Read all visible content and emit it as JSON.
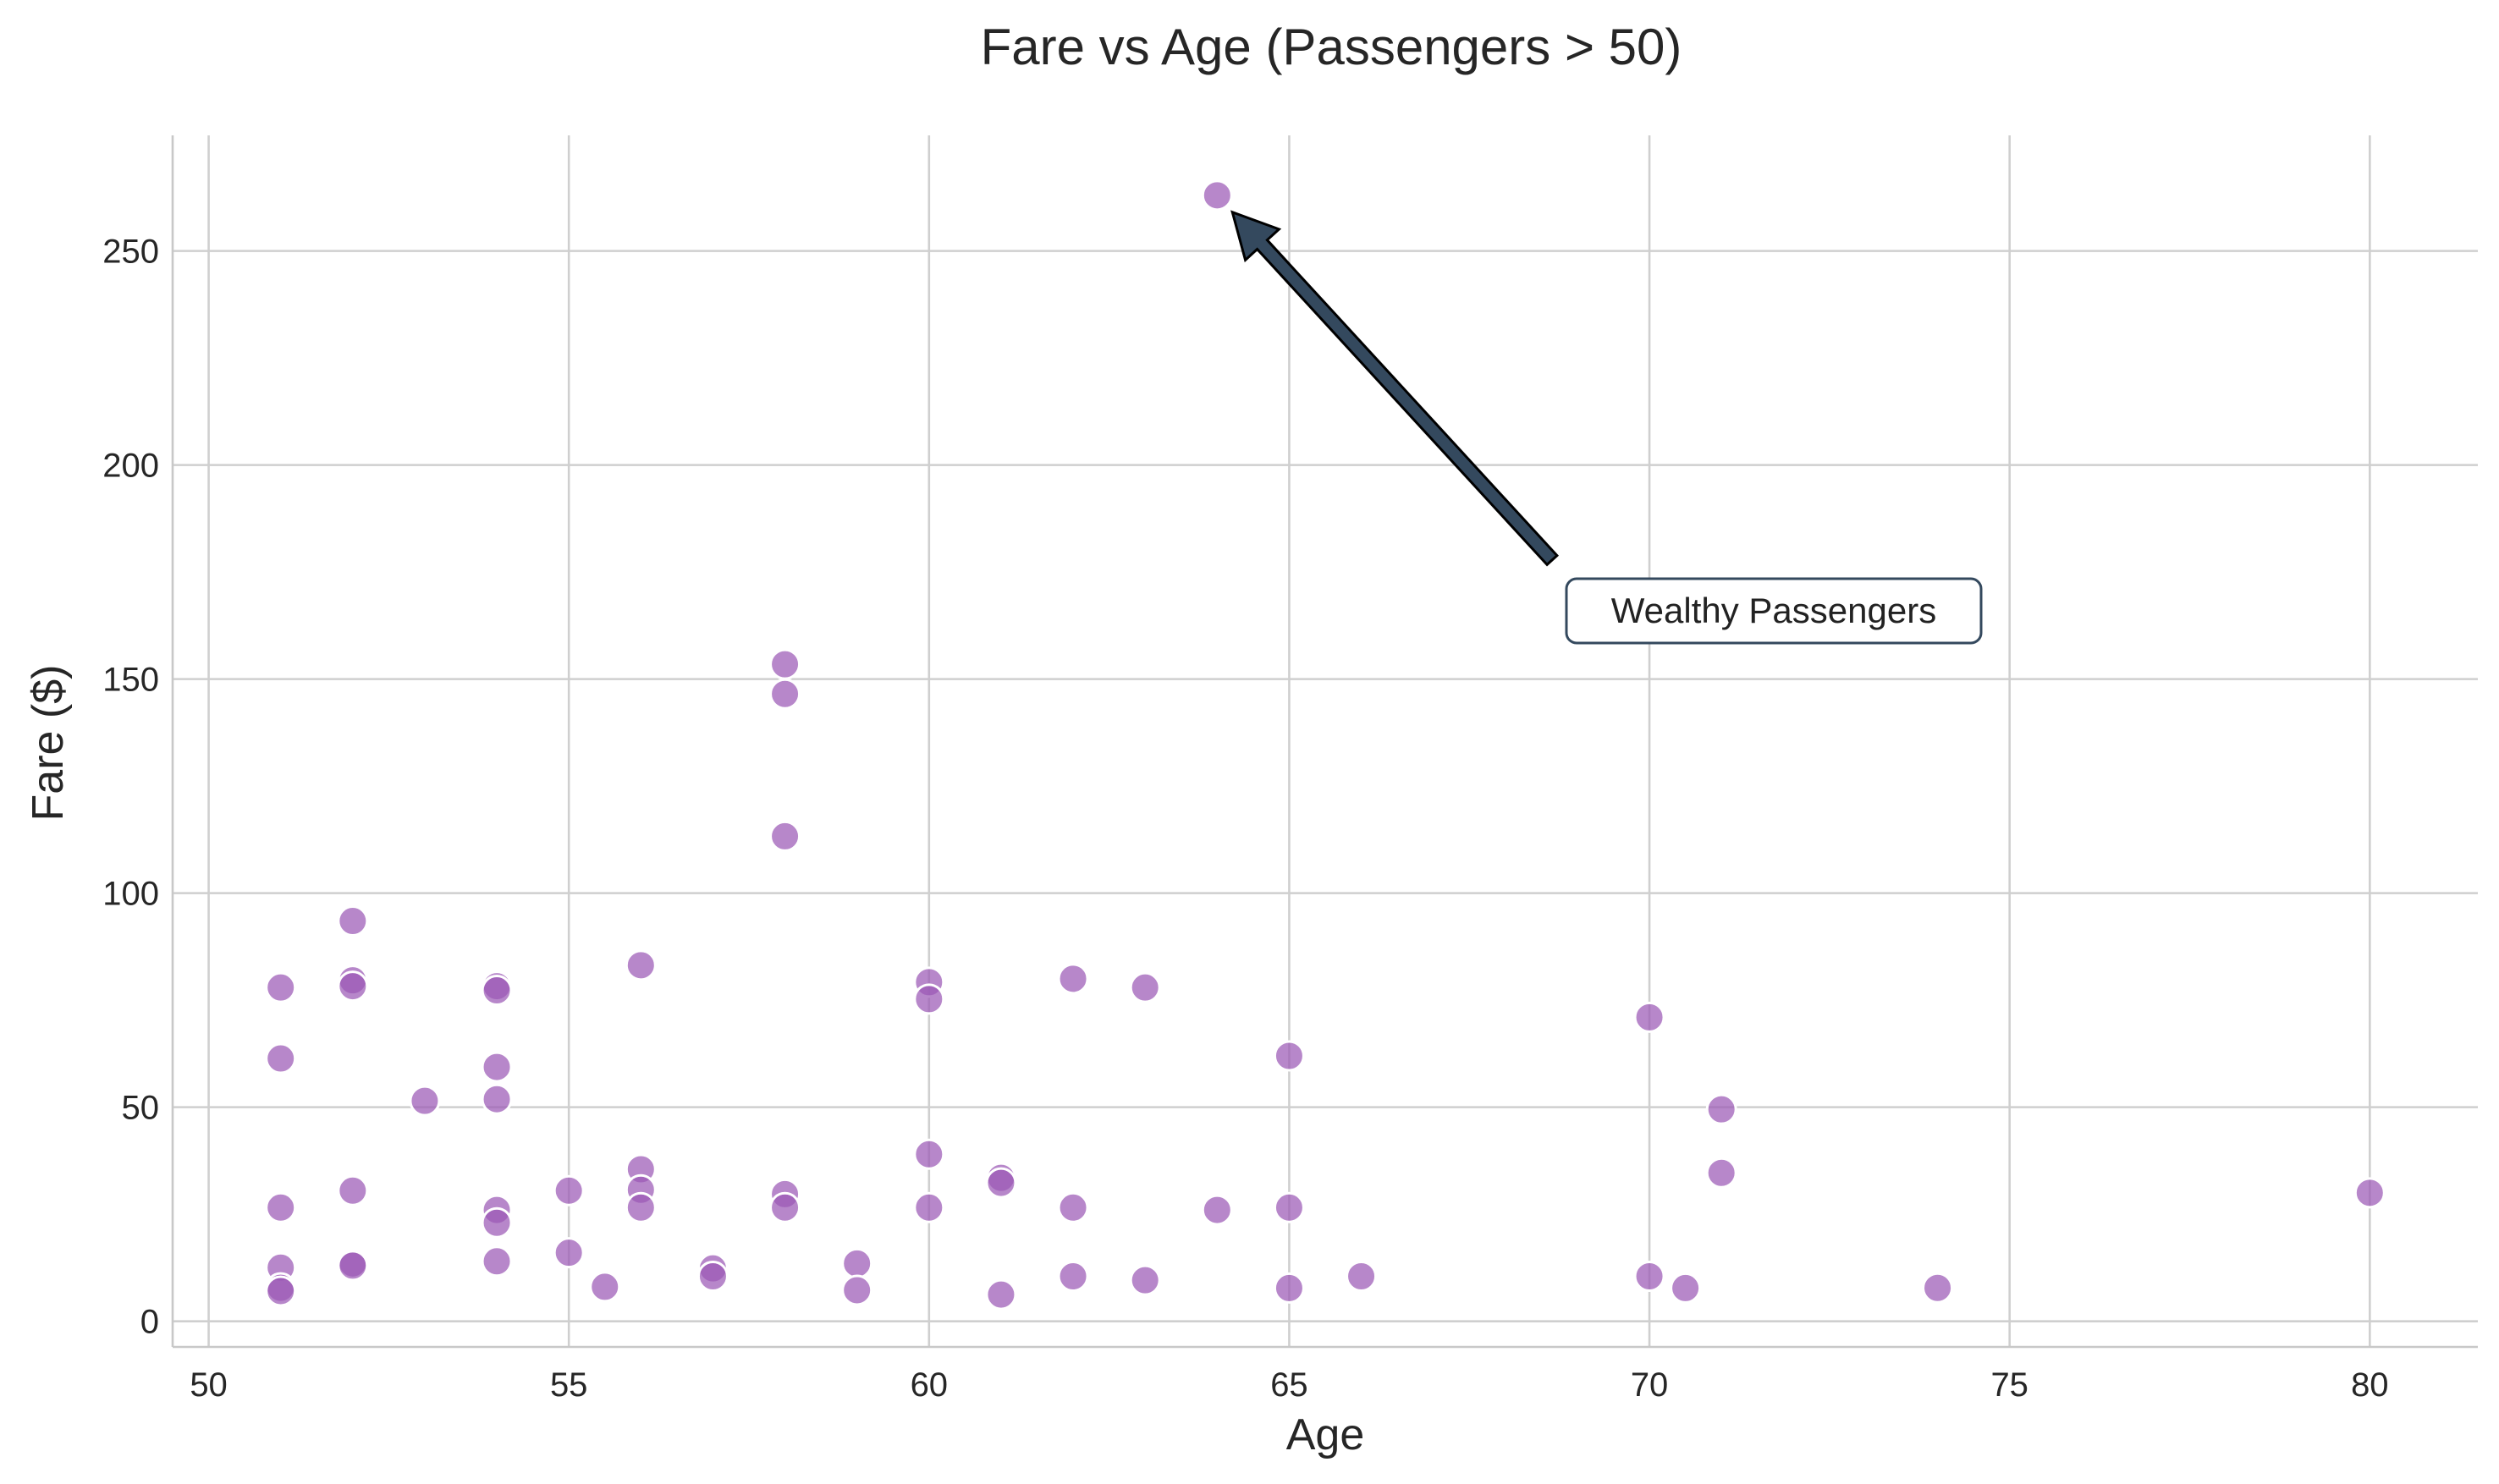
{
  "chart_data": {
    "type": "scatter",
    "title": "Fare vs Age (Passengers > 50)",
    "xlabel": "Age",
    "ylabel": "Fare ($)",
    "xlim": [
      49.5,
      81.5
    ],
    "ylim": [
      -6,
      277
    ],
    "xticks": [
      50,
      55,
      60,
      65,
      70,
      75,
      80
    ],
    "yticks": [
      0,
      50,
      100,
      150,
      200,
      250
    ],
    "grid": true,
    "legend": "none",
    "point_color": "#9b59b6",
    "point_opacity": 0.72,
    "series": [
      {
        "points": [
          [
            51,
            77.96
          ],
          [
            51,
            61.38
          ],
          [
            51,
            26.55
          ],
          [
            51,
            12.52
          ],
          [
            51,
            7.8
          ],
          [
            51,
            7.05
          ],
          [
            52,
            93.5
          ],
          [
            52,
            79.65
          ],
          [
            52,
            78.27
          ],
          [
            52,
            30.5
          ],
          [
            52,
            13.5
          ],
          [
            52,
            13.0
          ],
          [
            53,
            51.48
          ],
          [
            54,
            78.27
          ],
          [
            54,
            77.29
          ],
          [
            54,
            59.4
          ],
          [
            54,
            51.86
          ],
          [
            54,
            26.0
          ],
          [
            54,
            23.0
          ],
          [
            54,
            14.0
          ],
          [
            55,
            30.5
          ],
          [
            55,
            16.0
          ],
          [
            55.5,
            8.05
          ],
          [
            56,
            83.16
          ],
          [
            56,
            35.5
          ],
          [
            56,
            30.7
          ],
          [
            56,
            26.55
          ],
          [
            57,
            12.35
          ],
          [
            57,
            10.5
          ],
          [
            58,
            153.46
          ],
          [
            58,
            146.52
          ],
          [
            58,
            113.28
          ],
          [
            58,
            29.7
          ],
          [
            58,
            26.55
          ],
          [
            59,
            13.5
          ],
          [
            59,
            7.25
          ],
          [
            60,
            79.2
          ],
          [
            60,
            75.25
          ],
          [
            60,
            39.0
          ],
          [
            60,
            26.55
          ],
          [
            61,
            33.5
          ],
          [
            61,
            32.32
          ],
          [
            61,
            6.24
          ],
          [
            62,
            80.0
          ],
          [
            62,
            26.55
          ],
          [
            62,
            10.5
          ],
          [
            63,
            77.96
          ],
          [
            63,
            9.59
          ],
          [
            64,
            263.0
          ],
          [
            64,
            26.0
          ],
          [
            65,
            61.98
          ],
          [
            65,
            26.55
          ],
          [
            65,
            7.75
          ],
          [
            66,
            10.5
          ],
          [
            70,
            71.0
          ],
          [
            70,
            10.5
          ],
          [
            70.5,
            7.75
          ],
          [
            71,
            49.5
          ],
          [
            71,
            34.65
          ],
          [
            74,
            7.78
          ],
          [
            80,
            30.0
          ]
        ]
      }
    ],
    "annotations": [
      {
        "text": "Wealthy Passengers",
        "text_at": [
          69,
          165
        ],
        "arrow_to": [
          64,
          263
        ]
      }
    ]
  }
}
